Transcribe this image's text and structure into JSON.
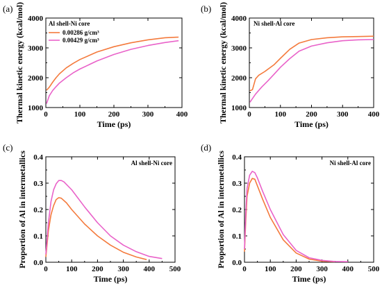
{
  "chart_data": [
    {
      "panel_label": "(a)",
      "type": "line",
      "annotation": "Al shell-Ni core",
      "xlabel": "Time (ps)",
      "ylabel": "Thermal kinetic energy (kcal/mol)",
      "xlim": [
        0,
        400
      ],
      "ylim": [
        1000,
        4000
      ],
      "xticks": [
        0,
        100,
        200,
        300,
        400
      ],
      "yticks": [
        1000,
        2000,
        3000,
        4000
      ],
      "legend": "top-left",
      "series": [
        {
          "name": "0.00286  g/cm³",
          "color": "#f47a3c",
          "x": [
            2,
            10,
            20,
            30,
            40,
            60,
            80,
            100,
            150,
            200,
            250,
            300,
            350,
            390
          ],
          "y": [
            1580,
            1680,
            1850,
            2000,
            2130,
            2330,
            2480,
            2610,
            2860,
            3040,
            3170,
            3270,
            3340,
            3360
          ]
        },
        {
          "name": "0.00429  g/cm³",
          "color": "#e962c9",
          "x": [
            2,
            10,
            20,
            30,
            40,
            60,
            80,
            100,
            150,
            200,
            250,
            300,
            350,
            390
          ],
          "y": [
            1130,
            1390,
            1570,
            1700,
            1820,
            2000,
            2160,
            2290,
            2560,
            2780,
            2950,
            3080,
            3180,
            3240
          ]
        }
      ]
    },
    {
      "panel_label": "(b)",
      "type": "line",
      "annotation": "Ni shell-Al core",
      "xlabel": "Time (ps)",
      "ylabel": "Thermal kinetic energy (kcal/mol)",
      "xlim": [
        0,
        400
      ],
      "ylim": [
        1000,
        4000
      ],
      "xticks": [
        0,
        100,
        200,
        300,
        400
      ],
      "yticks": [
        1000,
        2000,
        3000,
        4000
      ],
      "series": [
        {
          "name": "",
          "color": "#f47a3c",
          "x": [
            2,
            10,
            20,
            30,
            50,
            80,
            100,
            130,
            160,
            200,
            250,
            300,
            350,
            400
          ],
          "y": [
            1560,
            1600,
            1960,
            2080,
            2210,
            2440,
            2650,
            2950,
            3160,
            3280,
            3340,
            3370,
            3380,
            3390
          ]
        },
        {
          "name": "",
          "color": "#e962c9",
          "x": [
            2,
            10,
            20,
            40,
            60,
            80,
            100,
            130,
            160,
            200,
            250,
            300,
            350,
            400
          ],
          "y": [
            1180,
            1300,
            1450,
            1690,
            1900,
            2120,
            2350,
            2640,
            2890,
            3060,
            3170,
            3240,
            3270,
            3280
          ]
        }
      ]
    },
    {
      "panel_label": "(c)",
      "type": "line",
      "annotation": "Al shell-Ni core",
      "xlabel": "Time (ps)",
      "ylabel": "Proportion of Al in intermetallics",
      "xlim": [
        0,
        500
      ],
      "ylim": [
        0,
        0.4
      ],
      "xticks": [
        0,
        100,
        200,
        300,
        400,
        500
      ],
      "yticks": [
        0.0,
        0.1,
        0.2,
        0.3,
        0.4
      ],
      "series": [
        {
          "name": "",
          "color": "#f47a3c",
          "x": [
            0,
            10,
            20,
            30,
            40,
            50,
            60,
            80,
            100,
            150,
            200,
            250,
            300,
            350,
            390
          ],
          "y": [
            0.02,
            0.12,
            0.18,
            0.215,
            0.238,
            0.245,
            0.243,
            0.225,
            0.2,
            0.145,
            0.1,
            0.065,
            0.038,
            0.02,
            0.01
          ]
        },
        {
          "name": "",
          "color": "#e962c9",
          "x": [
            0,
            10,
            20,
            30,
            40,
            50,
            60,
            70,
            100,
            150,
            200,
            250,
            300,
            350,
            400,
            450
          ],
          "y": [
            0.03,
            0.15,
            0.23,
            0.275,
            0.298,
            0.31,
            0.31,
            0.305,
            0.275,
            0.21,
            0.15,
            0.1,
            0.065,
            0.04,
            0.022,
            0.014
          ]
        }
      ]
    },
    {
      "panel_label": "(d)",
      "type": "line",
      "annotation": "Ni shell-Al core",
      "xlabel": "Time (ps)",
      "ylabel": "Proportion of Al in intermetallics",
      "xlim": [
        0,
        500
      ],
      "ylim": [
        0,
        0.4
      ],
      "xticks": [
        0,
        100,
        200,
        300,
        400,
        500
      ],
      "yticks": [
        0.0,
        0.1,
        0.2,
        0.3,
        0.4
      ],
      "series": [
        {
          "name": "",
          "color": "#f47a3c",
          "x": [
            0,
            5,
            10,
            20,
            30,
            40,
            50,
            70,
            100,
            150,
            200,
            250,
            300,
            350
          ],
          "y": [
            0.04,
            0.16,
            0.25,
            0.3,
            0.318,
            0.315,
            0.29,
            0.24,
            0.17,
            0.085,
            0.035,
            0.012,
            0.004,
            0.002
          ]
        },
        {
          "name": "",
          "color": "#e962c9",
          "x": [
            0,
            5,
            10,
            20,
            30,
            40,
            50,
            70,
            100,
            150,
            200,
            250,
            300,
            350,
            400
          ],
          "y": [
            0.05,
            0.19,
            0.28,
            0.33,
            0.345,
            0.34,
            0.32,
            0.27,
            0.2,
            0.105,
            0.045,
            0.017,
            0.007,
            0.003,
            0.002
          ]
        }
      ]
    }
  ]
}
